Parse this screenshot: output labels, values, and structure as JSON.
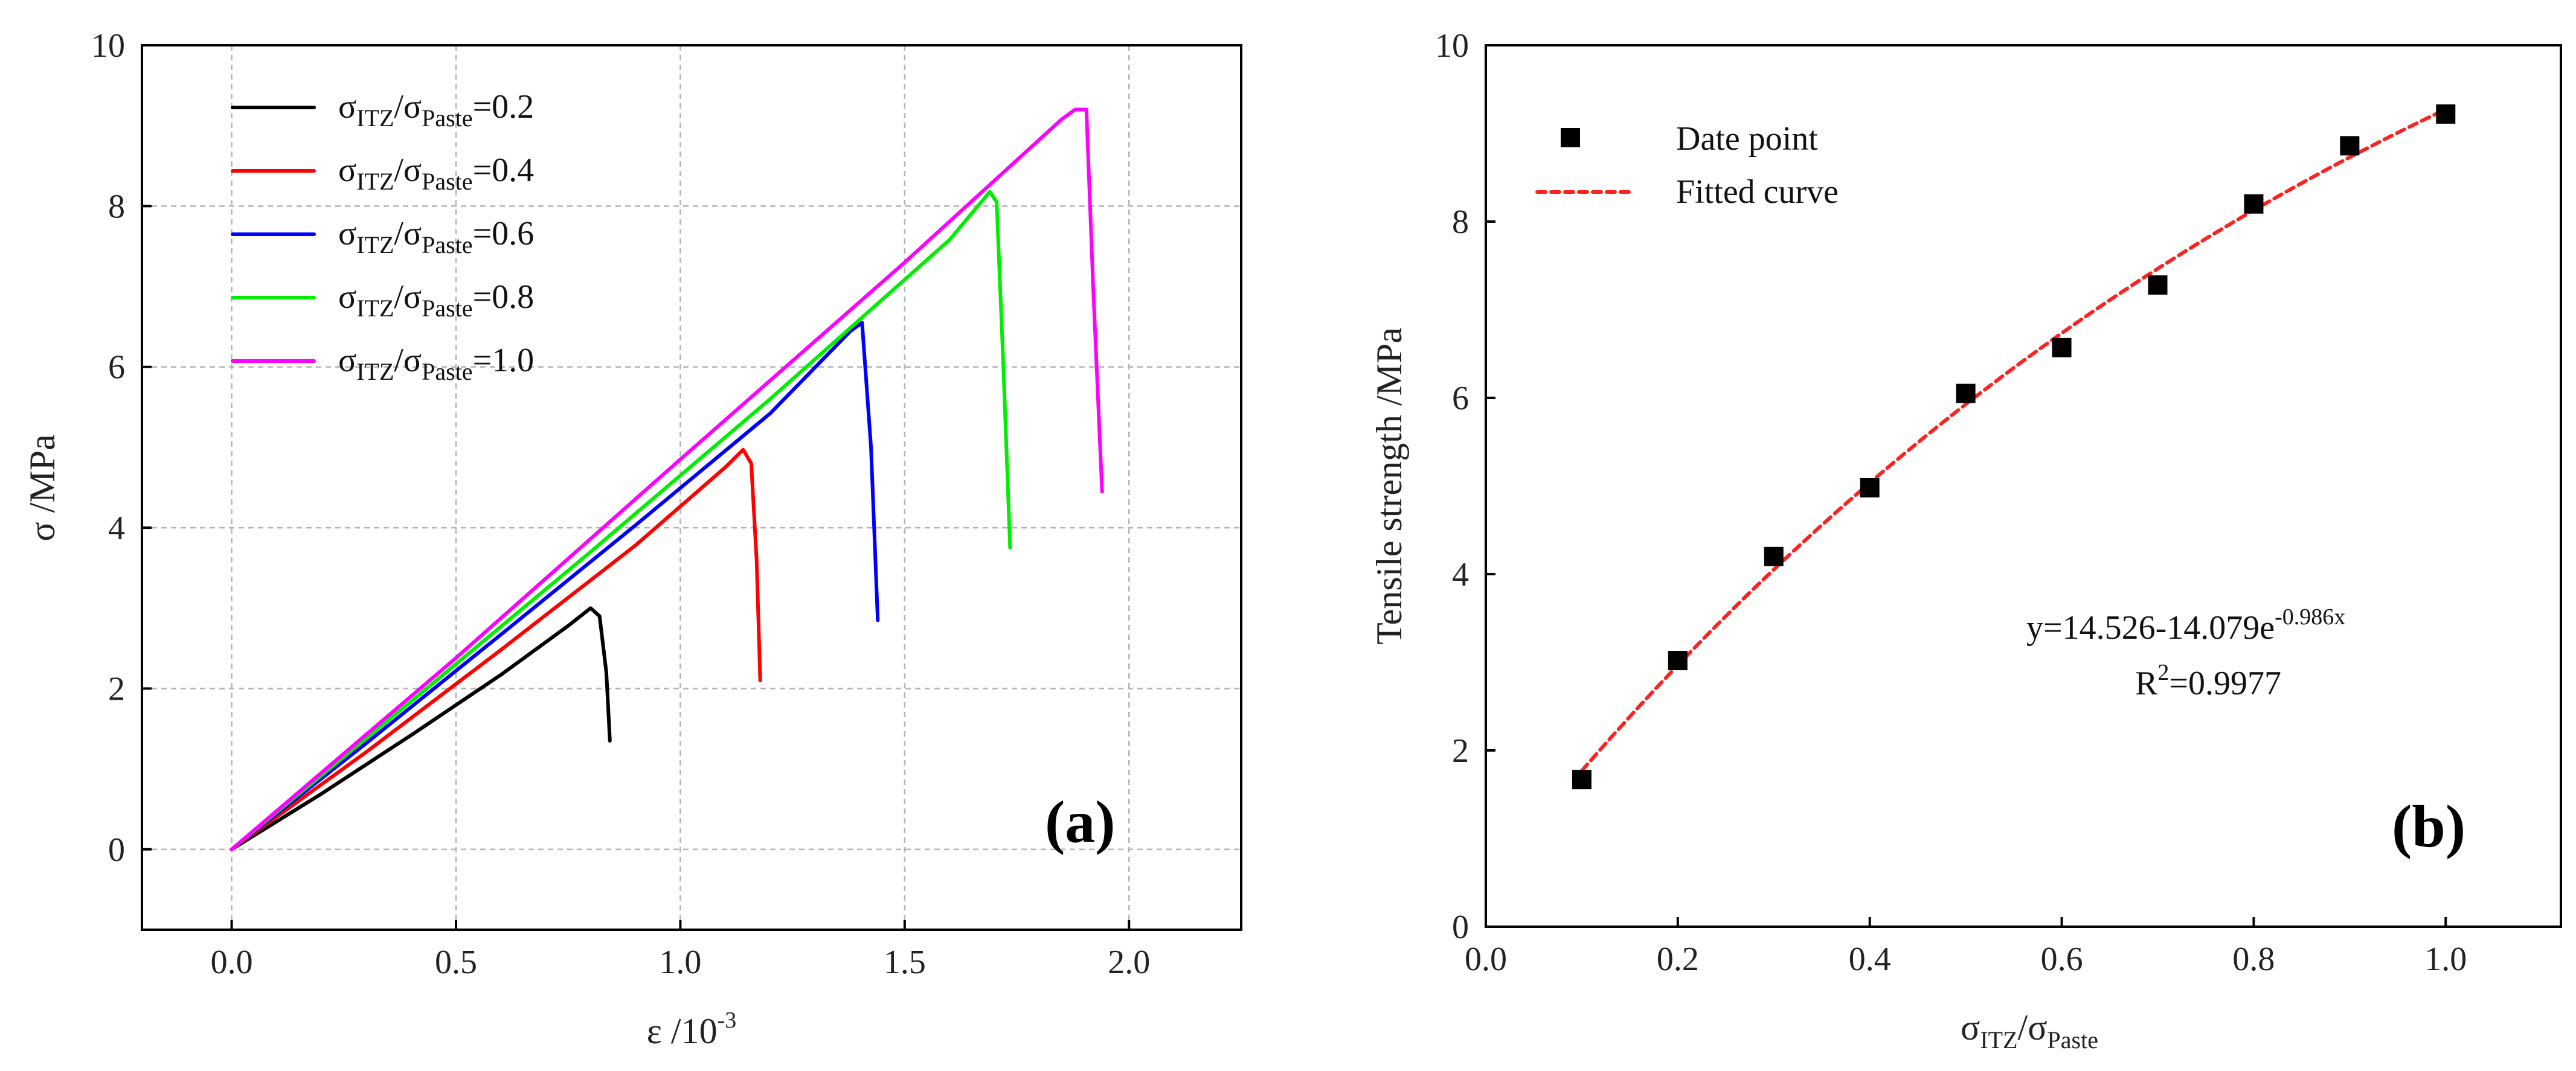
{
  "chart_data": [
    {
      "type": "line",
      "panel": "(a)",
      "xlabel": {
        "main": "ε /10",
        "sup": "-3"
      },
      "ylabel": "σ /MPa",
      "xlim": [
        -0.2,
        2.25
      ],
      "ylim": [
        -1,
        10
      ],
      "grid": true,
      "xticks": [
        0.0,
        0.5,
        1.0,
        1.5,
        2.0
      ],
      "xtick_labels": [
        "0.0",
        "0.5",
        "1.0",
        "1.5",
        "2.0"
      ],
      "yticks": [
        0,
        2,
        4,
        6,
        8,
        10
      ],
      "ytick_labels": [
        "0",
        "2",
        "4",
        "6",
        "8",
        "10"
      ],
      "legend_position": "top-left",
      "series": [
        {
          "name": "σITZ/σPaste=0.2",
          "ratio": "0.2",
          "color": "#000000",
          "x": [
            0,
            0.2,
            0.4,
            0.6,
            0.75,
            0.8,
            0.82,
            0.835,
            0.843
          ],
          "y": [
            0,
            0.69,
            1.42,
            2.17,
            2.78,
            3.0,
            2.9,
            2.2,
            1.35
          ]
        },
        {
          "name": "σITZ/σPaste=0.4",
          "ratio": "0.4",
          "color": "#ff0000",
          "x": [
            0,
            0.3,
            0.6,
            0.9,
            1.1,
            1.14,
            1.158,
            1.17,
            1.178
          ],
          "y": [
            0,
            1.21,
            2.48,
            3.78,
            4.75,
            4.97,
            4.8,
            3.6,
            2.1
          ]
        },
        {
          "name": "σITZ/σPaste=0.6",
          "ratio": "0.6",
          "color": "#0000ff",
          "x": [
            0,
            0.3,
            0.6,
            0.9,
            1.2,
            1.38,
            1.405,
            1.425,
            1.44
          ],
          "y": [
            0,
            1.32,
            2.67,
            4.03,
            5.42,
            6.45,
            6.55,
            5.0,
            2.85
          ]
        },
        {
          "name": "σITZ/σPaste=0.8",
          "ratio": "0.8",
          "color": "#00ee00",
          "x": [
            0,
            0.4,
            0.8,
            1.2,
            1.6,
            1.69,
            1.705,
            1.72,
            1.735
          ],
          "y": [
            0,
            1.84,
            3.7,
            5.6,
            7.58,
            8.18,
            8.05,
            6.0,
            3.75
          ]
        },
        {
          "name": "σITZ/σPaste=1.0",
          "ratio": "1.0",
          "color": "#ff00ff",
          "x": [
            0,
            0.5,
            1.0,
            1.5,
            1.85,
            1.88,
            1.905,
            1.92,
            1.94
          ],
          "y": [
            0,
            2.38,
            4.85,
            7.3,
            9.08,
            9.2,
            9.2,
            7.0,
            4.45
          ]
        }
      ]
    },
    {
      "type": "scatter",
      "panel": "(b)",
      "xlabel": {
        "main": "σ",
        "sub1": "ITZ",
        "mid": "/σ",
        "sub2": "Paste"
      },
      "ylabel": "Tensile strength /MPa",
      "xlim": [
        0.0,
        1.12
      ],
      "ylim": [
        0,
        10
      ],
      "grid": false,
      "xticks": [
        0.0,
        0.2,
        0.4,
        0.6,
        0.8,
        1.0
      ],
      "xtick_labels": [
        "0.0",
        "0.2",
        "0.4",
        "0.6",
        "0.8",
        "1.0"
      ],
      "yticks": [
        0,
        2,
        4,
        6,
        8,
        10
      ],
      "ytick_labels": [
        "0",
        "2",
        "4",
        "6",
        "8",
        "10"
      ],
      "legend_position": "top-left",
      "series": [
        {
          "name": "Date point",
          "kind": "points",
          "color": "#000000",
          "x": [
            0.1,
            0.2,
            0.3,
            0.4,
            0.5,
            0.6,
            0.7,
            0.8,
            0.9,
            1.0
          ],
          "y": [
            1.67,
            3.02,
            4.2,
            4.98,
            6.05,
            6.57,
            7.28,
            8.2,
            8.86,
            9.22
          ]
        },
        {
          "name": "Fitted curve",
          "kind": "fit",
          "color": "#ff2020",
          "equation": {
            "a": 14.526,
            "b": 14.079,
            "k": -0.986,
            "x_range": [
              0.1,
              1.0
            ]
          }
        }
      ],
      "annotation": {
        "equation_main": "y=14.526-14.079e",
        "equation_sup": "-0.986x",
        "r2_main": "R",
        "r2_sup": "2",
        "r2_value": "=0.9977"
      }
    }
  ]
}
